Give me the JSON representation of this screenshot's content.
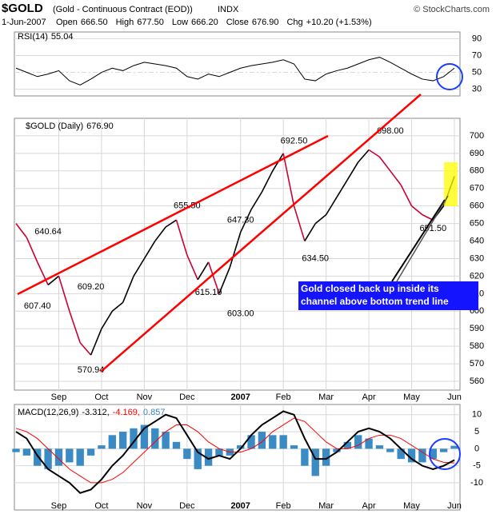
{
  "chart_data": {
    "type": "line",
    "title": "$GOLD",
    "subtitle": "(Gold - Continuous Contract (EOD))",
    "exchange": "INDX",
    "credit": "© StockCharts.com",
    "quote": {
      "date": "1-Jun-2007",
      "fields": [
        {
          "name": "Open",
          "text": "666.50"
        },
        {
          "name": "High",
          "text": "677.50"
        },
        {
          "name": "Low",
          "text": "666.20"
        },
        {
          "name": "Close",
          "text": "676.90"
        },
        {
          "name": "Chg",
          "text": "+10.20 (+1.53%)"
        }
      ]
    },
    "categories": [
      null,
      null,
      null,
      null,
      "Sep",
      null,
      null,
      null,
      "Oct",
      null,
      null,
      null,
      "Nov",
      null,
      null,
      null,
      "Dec",
      null,
      null,
      null,
      null,
      "2007",
      null,
      null,
      null,
      "Feb",
      null,
      null,
      null,
      "Mar",
      null,
      null,
      null,
      "Apr",
      null,
      null,
      null,
      "May",
      null,
      null,
      null,
      "Jun"
    ],
    "price": {
      "name": "$GOLD (Daily)",
      "last": 676.9,
      "last_label": "676.90",
      "color": "#000000",
      "values": [
        650,
        642,
        628,
        615,
        620,
        600,
        582,
        575,
        590,
        600,
        605,
        620,
        630,
        640,
        648,
        652,
        632,
        618,
        628,
        610,
        625,
        645,
        658,
        668,
        680,
        690,
        660,
        640,
        650,
        655,
        665,
        675,
        685,
        692,
        688,
        680,
        672,
        660,
        655,
        652,
        660,
        676.9
      ],
      "ylim": [
        555,
        710
      ],
      "yticks": [
        560,
        570,
        580,
        590,
        600,
        610,
        620,
        630,
        640,
        650,
        660,
        670,
        680,
        690,
        700
      ],
      "annotations": [
        {
          "value": 640.64,
          "label": "640.64"
        },
        {
          "value": 607.4,
          "label": "607.40"
        },
        {
          "value": 609.2,
          "label": "609.20"
        },
        {
          "value": 570.94,
          "label": "570.94"
        },
        {
          "value": 655.5,
          "label": "655.50"
        },
        {
          "value": 615.1,
          "label": "615.10"
        },
        {
          "value": 647.3,
          "label": "647.30"
        },
        {
          "value": 603.0,
          "label": "603.00"
        },
        {
          "value": 692.5,
          "label": "692.50"
        },
        {
          "value": 634.5,
          "label": "634.50"
        },
        {
          "value": 698.0,
          "label": "698.00"
        },
        {
          "value": 651.5,
          "label": "651.50"
        }
      ],
      "callout": "Gold closed back up inside its channel above bottom trend line"
    },
    "rsi": {
      "name": "RSI(14)",
      "last": 55.04,
      "color": "#000000",
      "values": [
        55,
        50,
        45,
        48,
        52,
        40,
        35,
        42,
        50,
        55,
        52,
        58,
        62,
        60,
        58,
        55,
        45,
        42,
        48,
        45,
        50,
        55,
        58,
        60,
        62,
        65,
        60,
        42,
        40,
        48,
        52,
        55,
        60,
        65,
        68,
        62,
        55,
        48,
        42,
        40,
        45,
        55.04
      ],
      "ylim": [
        22,
        98
      ],
      "yticks": [
        30,
        50,
        70,
        90
      ]
    },
    "macd": {
      "name": "MACD(12,26,9)",
      "last_values": [
        -3.312,
        -4.169,
        0.857
      ],
      "last_value_labels": [
        "-3.312,",
        "-4.169,",
        "0.857"
      ],
      "ylim": [
        -18,
        13
      ],
      "yticks": [
        -10,
        -5,
        0,
        5,
        10
      ],
      "series": [
        {
          "name": "MACD",
          "color": "#000000",
          "values": [
            5,
            3,
            -2,
            -6,
            -8,
            -10,
            -13,
            -12,
            -9,
            -5,
            -2,
            2,
            6,
            8,
            10,
            9,
            4,
            -1,
            -3,
            -2,
            -3,
            0,
            4,
            7,
            9,
            11,
            10,
            3,
            -3,
            -3,
            -1,
            2,
            5,
            6,
            5,
            3,
            0,
            -3,
            -5,
            -6,
            -5,
            -3.312
          ]
        },
        {
          "name": "Signal",
          "color": "#ff0000",
          "values": [
            6,
            5,
            3,
            0,
            -3,
            -6,
            -8,
            -10,
            -10,
            -9,
            -7,
            -4,
            -1,
            2,
            5,
            7,
            7,
            5,
            2,
            0,
            -1,
            -1,
            0,
            2,
            5,
            7,
            9,
            8,
            5,
            2,
            0,
            0,
            1,
            3,
            4,
            4,
            3,
            1,
            -1,
            -3,
            -4,
            -4.169
          ]
        },
        {
          "name": "Histogram",
          "color": "#3a8bc4",
          "values": [
            -1,
            -2,
            -5,
            -6,
            -5,
            -4,
            -5,
            -2,
            1,
            4,
            5,
            6,
            7,
            6,
            5,
            2,
            -3,
            -6,
            -5,
            -2,
            -2,
            1,
            4,
            5,
            4,
            4,
            1,
            -5,
            -8,
            -5,
            -1,
            2,
            4,
            3,
            1,
            -1,
            -3,
            -4,
            -4,
            -3,
            -1,
            0.857
          ]
        }
      ]
    }
  }
}
